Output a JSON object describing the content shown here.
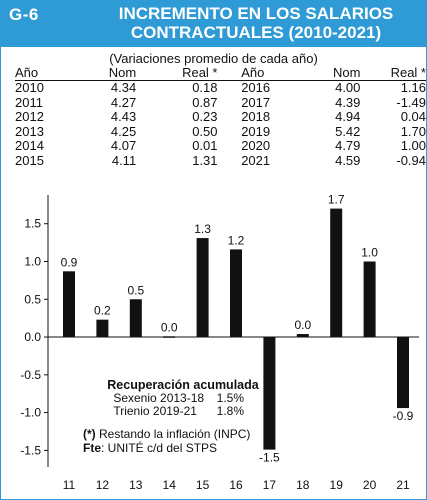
{
  "header": {
    "fig_id": "G-6",
    "title_line1": "INCREMENTO EN LOS SALARIOS",
    "title_line2": "CONTRACTUALES (2010-2021)",
    "subtitle": "(Variaciones promedio de cada año)"
  },
  "table": {
    "headers": [
      "Año",
      "Nom",
      "Real *",
      "Año",
      "Nom",
      "Real *"
    ],
    "rows": [
      [
        "2010",
        "4.34",
        "0.18",
        "2016",
        "4.00",
        "1.16"
      ],
      [
        "2011",
        "4.27",
        "0.87",
        "2017",
        "4.39",
        "-1.49"
      ],
      [
        "2012",
        "4.43",
        "0.23",
        "2018",
        "4.94",
        "0.04"
      ],
      [
        "2013",
        "4.25",
        "0.50",
        "2019",
        "5.42",
        "1.70"
      ],
      [
        "2014",
        "4.07",
        "0.01",
        "2020",
        "4.79",
        "1.00"
      ],
      [
        "2015",
        "4.11",
        "1.31",
        "2021",
        "4.59",
        "-0.94"
      ]
    ]
  },
  "chart_data": {
    "type": "bar",
    "categories": [
      "11",
      "12",
      "13",
      "14",
      "15",
      "16",
      "17",
      "18",
      "19",
      "20",
      "21"
    ],
    "values": [
      0.87,
      0.23,
      0.5,
      0.01,
      1.31,
      1.16,
      -1.49,
      0.04,
      1.7,
      1.0,
      -0.94
    ],
    "data_labels": [
      "0.9",
      "0.2",
      "0.5",
      "0.0",
      "1.3",
      "1.2",
      "-1.5",
      "0.0",
      "1.7",
      "1.0",
      "-0.9"
    ],
    "yticks": [
      1.5,
      1.0,
      0.5,
      0.0,
      -0.5,
      -1.0,
      -1.5
    ],
    "ytick_labels": [
      "1.5",
      "1.0",
      "0.5",
      "0.0",
      "-0.5",
      "-1.0",
      "-1.5"
    ],
    "ylim": [
      -1.72,
      1.88
    ],
    "title": "",
    "xlabel": "",
    "ylabel": "",
    "bar_color": "#111111",
    "grid": false
  },
  "notes": {
    "recovery_title": "Recuperación acumulada",
    "recovery_rows": [
      {
        "label": "Sexenio 2013-18",
        "value": "1.5%"
      },
      {
        "label": "Trienio 2019-21",
        "value": "1.8%"
      }
    ],
    "asterisk": "(*)",
    "asterisk_text": " Restando la inflación (INPC)",
    "source_label": "Fte",
    "source_text": ": UNITÉ c/d del STPS"
  },
  "colors": {
    "accent": "#2e9bd6"
  }
}
